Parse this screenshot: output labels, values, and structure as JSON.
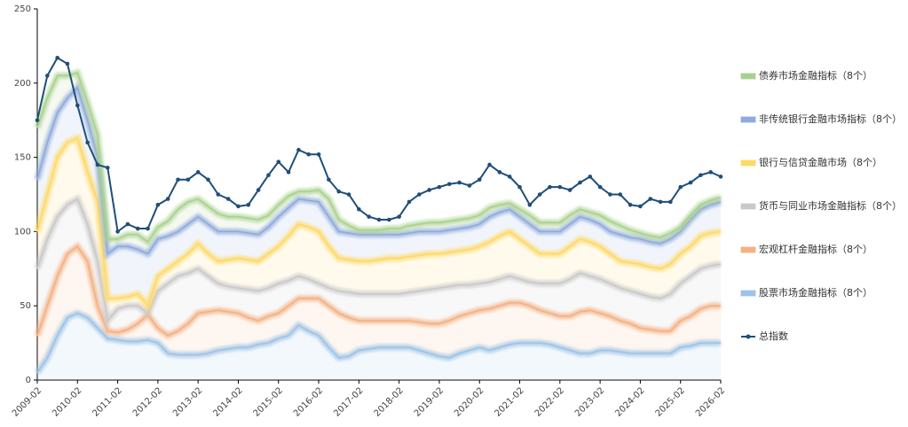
{
  "chart_data": {
    "type": "area",
    "stacked": true,
    "categories": [
      "2009-02",
      null,
      null,
      null,
      "2010-02",
      null,
      null,
      null,
      "2011-02",
      null,
      null,
      null,
      "2012-02",
      null,
      null,
      null,
      "2013-02",
      null,
      null,
      null,
      "2014-02",
      null,
      null,
      null,
      "2015-02",
      null,
      null,
      null,
      "2016-02",
      null,
      null,
      null,
      "2017-02",
      null,
      null,
      null,
      "2018-02",
      null,
      null,
      null,
      "2019-02",
      null,
      null,
      null,
      "2020-02",
      null,
      null,
      null,
      "2021-02",
      null,
      null,
      null,
      "2022-02",
      null,
      null,
      null,
      "2023-02",
      null,
      null,
      null,
      "2024-02",
      null,
      null,
      null,
      "2025-02",
      null,
      null,
      null,
      "2026-02"
    ],
    "ylim": [
      0,
      250
    ],
    "yticks": [
      0,
      50,
      100,
      150,
      200,
      250
    ],
    "series": [
      {
        "name": "股票市场金融指标（8个）",
        "color": "#9dc3e6",
        "values": [
          5,
          15,
          30,
          42,
          45,
          42,
          35,
          28,
          27,
          26,
          26,
          27,
          25,
          18,
          17,
          17,
          17,
          18,
          20,
          21,
          22,
          22,
          24,
          25,
          28,
          30,
          37,
          33,
          30,
          22,
          15,
          16,
          20,
          21,
          22,
          22,
          22,
          22,
          20,
          18,
          16,
          15,
          18,
          20,
          22,
          20,
          22,
          24,
          25,
          25,
          25,
          24,
          22,
          20,
          18,
          18,
          20,
          20,
          19,
          18,
          18,
          18,
          18,
          18,
          22,
          23,
          25,
          25,
          25
        ]
      },
      {
        "name": "宏观杠杆金融指标（8个）",
        "color": "#f4b183",
        "values": [
          25,
          35,
          40,
          43,
          45,
          38,
          15,
          5,
          5,
          8,
          12,
          17,
          10,
          12,
          16,
          21,
          28,
          28,
          27,
          25,
          23,
          20,
          16,
          18,
          17,
          20,
          18,
          22,
          25,
          28,
          30,
          26,
          20,
          19,
          18,
          18,
          18,
          18,
          19,
          20,
          22,
          25,
          25,
          25,
          25,
          28,
          28,
          28,
          27,
          25,
          22,
          21,
          21,
          23,
          28,
          29,
          25,
          23,
          21,
          20,
          17,
          16,
          15,
          15,
          18,
          20,
          23,
          25,
          25
        ]
      },
      {
        "name": "货币与同业市场金融指标（8个）",
        "color": "#c9c9c9",
        "values": [
          45,
          45,
          40,
          33,
          32,
          25,
          30,
          7,
          16,
          16,
          12,
          1,
          25,
          35,
          37,
          34,
          30,
          24,
          18,
          17,
          17,
          19,
          20,
          19,
          20,
          17,
          15,
          13,
          10,
          12,
          15,
          17,
          18,
          18,
          18,
          18,
          18,
          19,
          21,
          23,
          24,
          23,
          21,
          19,
          18,
          18,
          18,
          18,
          16,
          16,
          18,
          20,
          22,
          25,
          26,
          23,
          23,
          22,
          22,
          22,
          23,
          22,
          22,
          25,
          25,
          27,
          27,
          27,
          28
        ]
      },
      {
        "name": "银行与信贷金融市场（8个）",
        "color": "#ffd966",
        "values": [
          25,
          30,
          40,
          42,
          41,
          35,
          40,
          15,
          7,
          6,
          8,
          5,
          10,
          10,
          10,
          13,
          17,
          15,
          15,
          18,
          20,
          20,
          20,
          23,
          25,
          30,
          35,
          35,
          35,
          28,
          22,
          22,
          22,
          22,
          23,
          24,
          24,
          24,
          24,
          24,
          23,
          23,
          23,
          24,
          25,
          27,
          29,
          30,
          27,
          24,
          20,
          20,
          20,
          22,
          23,
          23,
          22,
          20,
          18,
          19,
          20,
          20,
          20,
          20,
          20,
          20,
          22,
          22,
          22
        ]
      },
      {
        "name": "非传统银行金融市场指标（8个）",
        "color": "#8faadc",
        "values": [
          35,
          35,
          30,
          30,
          34,
          35,
          30,
          30,
          35,
          34,
          30,
          35,
          25,
          22,
          20,
          20,
          18,
          20,
          20,
          19,
          18,
          18,
          18,
          18,
          20,
          19,
          17,
          18,
          20,
          20,
          18,
          18,
          18,
          18,
          17,
          16,
          16,
          16,
          16,
          15,
          15,
          15,
          15,
          15,
          15,
          17,
          16,
          15,
          15,
          15,
          15,
          15,
          15,
          15,
          15,
          15,
          15,
          15,
          18,
          17,
          17,
          17,
          17,
          17,
          15,
          18,
          18,
          19,
          20
        ]
      },
      {
        "name": "债券市场金融指标（8个）",
        "color": "#a9d18e",
        "values": [
          35,
          30,
          25,
          15,
          10,
          12,
          15,
          10,
          5,
          8,
          10,
          8,
          8,
          10,
          15,
          15,
          12,
          12,
          12,
          10,
          10,
          10,
          10,
          8,
          8,
          8,
          5,
          6,
          8,
          12,
          8,
          5,
          3,
          3,
          3,
          4,
          4,
          5,
          5,
          6,
          6,
          6,
          6,
          6,
          6,
          6,
          5,
          4,
          5,
          6,
          6,
          6,
          6,
          6,
          5,
          5,
          6,
          7,
          6,
          5,
          4,
          4,
          4,
          4,
          3,
          3,
          3,
          3,
          3
        ]
      },
      {
        "name": "总指数",
        "color": "#1f4e79",
        "type": "line",
        "values": [
          175,
          205,
          217,
          213,
          185,
          160,
          145,
          143,
          100,
          105,
          102,
          102,
          118,
          122,
          135,
          135,
          140,
          135,
          125,
          122,
          117,
          118,
          128,
          138,
          147,
          140,
          155,
          152,
          152,
          135,
          127,
          125,
          115,
          110,
          108,
          108,
          110,
          120,
          125,
          128,
          130,
          132,
          133,
          131,
          135,
          145,
          140,
          137,
          130,
          118,
          125,
          130,
          130,
          128,
          133,
          137,
          130,
          125,
          125,
          118,
          117,
          122,
          120,
          120,
          130,
          133,
          138,
          140,
          137
        ]
      }
    ]
  }
}
